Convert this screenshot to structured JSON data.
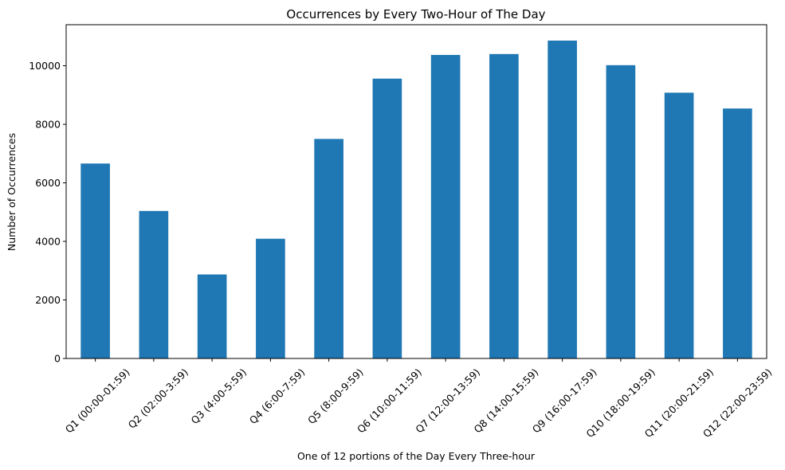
{
  "chart_data": {
    "type": "bar",
    "title": "Occurrences by Every Two-Hour of The Day",
    "xlabel": "One of 12 portions of the Day Every Three-hour",
    "ylabel": "Number of Occurrences",
    "categories": [
      "Q1 (00:00-01:59)",
      "Q2 (02:00-3:59)",
      "Q3 (4:00-5:59)",
      "Q4 (6:00-7:59)",
      "Q5 (8:00-9:59)",
      "Q6 (10:00-11:59)",
      "Q7 (12:00-13:59)",
      "Q8 (14:00-15:59)",
      "Q9 (16:00-17:59)",
      "Q10 (18:00-19:59)",
      "Q11 (20:00-21:59)",
      "Q12 (22:00-23:59)"
    ],
    "values": [
      6660,
      5040,
      2870,
      4090,
      7500,
      9560,
      10370,
      10400,
      10860,
      10020,
      9080,
      8540
    ],
    "yticks": [
      0,
      2000,
      4000,
      6000,
      8000,
      10000
    ],
    "ylim": [
      0,
      11403
    ],
    "color": "#1f77b4",
    "grid": false
  }
}
